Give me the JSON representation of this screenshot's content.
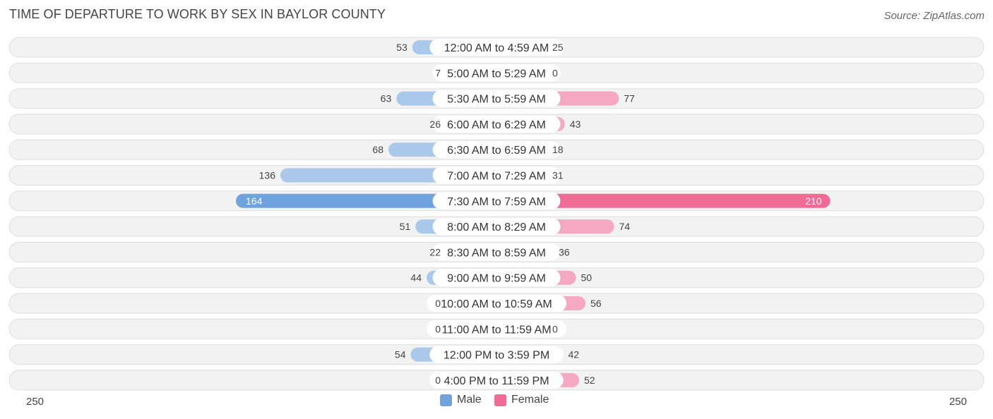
{
  "header": {
    "title": "TIME OF DEPARTURE TO WORK BY SEX IN BAYLOR COUNTY",
    "source": "Source: ZipAtlas.com"
  },
  "colors": {
    "male": "#6fa3de",
    "male_light": "#a9c8ea",
    "female": "#f06b96",
    "female_light": "#f5a8c1",
    "row_bg": "#f0f0f0"
  },
  "chart_data": {
    "type": "bar",
    "orientation": "horizontal-diverging",
    "title": "TIME OF DEPARTURE TO WORK BY SEX IN BAYLOR COUNTY",
    "categories": [
      "12:00 AM to 4:59 AM",
      "5:00 AM to 5:29 AM",
      "5:30 AM to 5:59 AM",
      "6:00 AM to 6:29 AM",
      "6:30 AM to 6:59 AM",
      "7:00 AM to 7:29 AM",
      "7:30 AM to 7:59 AM",
      "8:00 AM to 8:29 AM",
      "8:30 AM to 8:59 AM",
      "9:00 AM to 9:59 AM",
      "10:00 AM to 10:59 AM",
      "11:00 AM to 11:59 AM",
      "12:00 PM to 3:59 PM",
      "4:00 PM to 11:59 PM"
    ],
    "series": [
      {
        "name": "Male",
        "values": [
          53,
          7,
          63,
          26,
          68,
          136,
          164,
          51,
          22,
          44,
          0,
          0,
          54,
          0
        ]
      },
      {
        "name": "Female",
        "values": [
          25,
          0,
          77,
          43,
          18,
          31,
          210,
          74,
          36,
          50,
          56,
          0,
          42,
          52
        ]
      }
    ],
    "axis_max": 250,
    "axis_left_label": "250",
    "axis_right_label": "250",
    "legend": [
      "Male",
      "Female"
    ],
    "legend_position": "bottom-center",
    "highlight_index": 6
  }
}
